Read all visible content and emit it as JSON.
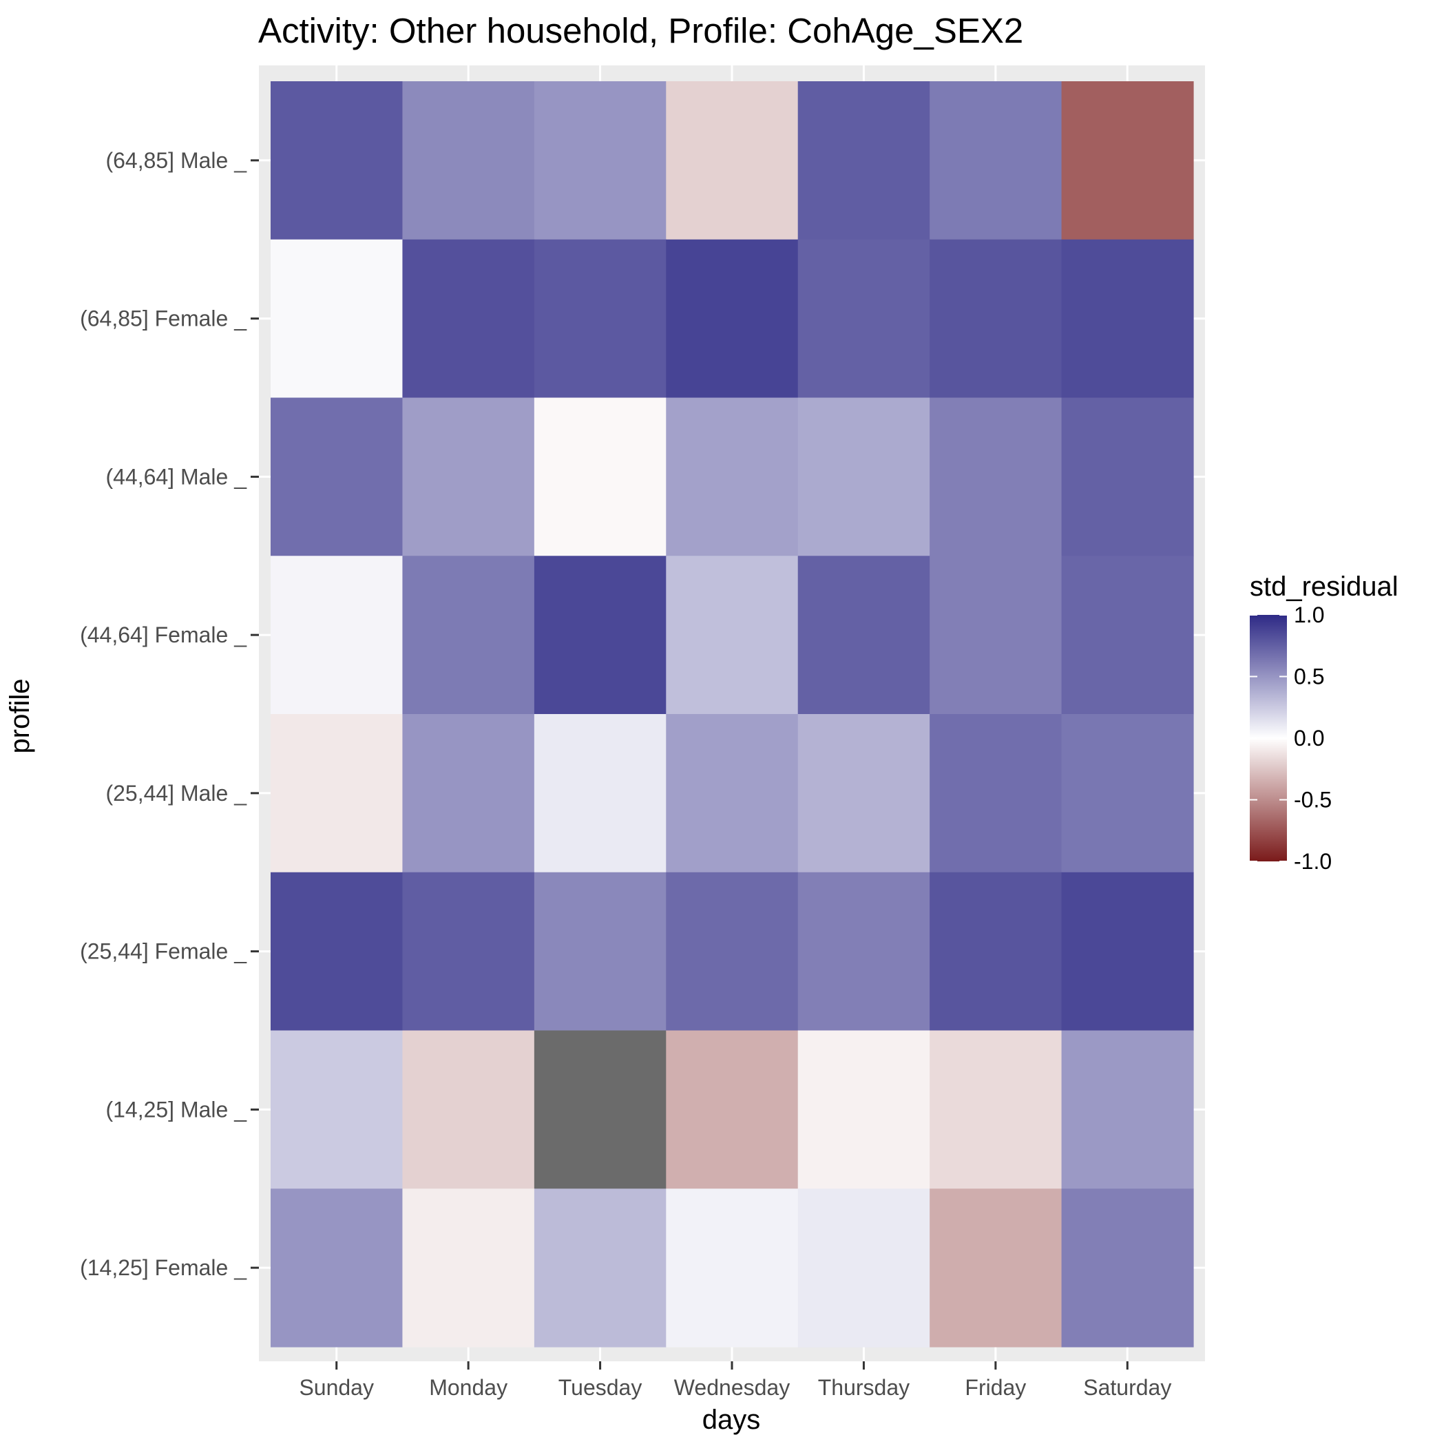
{
  "chart_data": {
    "type": "heatmap",
    "title": "Activity: Other household, Profile: CohAge_SEX2",
    "xlabel": "days",
    "ylabel": "profile",
    "x_categories": [
      "Sunday",
      "Monday",
      "Tuesday",
      "Wednesday",
      "Thursday",
      "Friday",
      "Saturday"
    ],
    "y_categories": [
      "(64,85] Male _",
      "(64,85] Female _",
      "(44,64] Male _",
      "(44,64] Female _",
      "(25,44] Male _",
      "(25,44] Female _",
      "(14,25] Male _",
      "(14,25] Female _"
    ],
    "values": [
      [
        0.78,
        0.55,
        0.5,
        -0.2,
        0.76,
        0.62,
        -0.7
      ],
      [
        0.03,
        0.82,
        0.78,
        0.88,
        0.74,
        0.8,
        0.84
      ],
      [
        0.68,
        0.46,
        -0.03,
        0.44,
        0.4,
        0.6,
        0.74
      ],
      [
        0.05,
        0.62,
        0.86,
        0.3,
        0.74,
        0.6,
        0.72
      ],
      [
        -0.1,
        0.5,
        0.1,
        0.45,
        0.36,
        0.68,
        0.64
      ],
      [
        0.84,
        0.76,
        0.56,
        0.7,
        0.6,
        0.8,
        0.86
      ],
      [
        0.25,
        -0.2,
        null,
        -0.35,
        -0.06,
        -0.16,
        0.48
      ],
      [
        0.5,
        -0.08,
        0.32,
        0.06,
        0.1,
        -0.36,
        0.6
      ]
    ],
    "na_color": "#6b6b6b",
    "fill_scale": {
      "name": "std_residual",
      "limits": [
        -1,
        1
      ],
      "breaks": [
        1,
        0.5,
        0,
        -0.5,
        -1
      ],
      "break_labels": [
        "1.0",
        "0.5",
        "0.0",
        "-0.5",
        "-1.0"
      ],
      "low_color": "#7a1a1a",
      "mid_color": "#ffffff",
      "high_color": "#2e2a86"
    },
    "panel_background": "#ebebeb",
    "grid": true,
    "legend_position": "right"
  }
}
